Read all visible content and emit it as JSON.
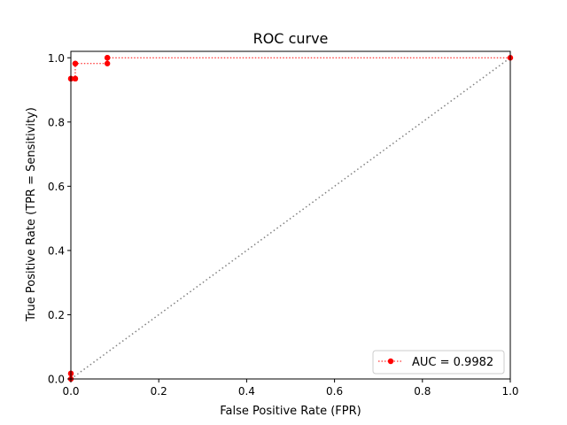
{
  "chart_data": {
    "type": "line",
    "title": "ROC curve",
    "xlabel": "False Positive Rate (FPR)",
    "ylabel": "True Positive Rate (TPR = Sensitivity)",
    "xlim": [
      0,
      1
    ],
    "ylim": [
      0,
      1.02
    ],
    "xticks": [
      0.0,
      0.2,
      0.4,
      0.6,
      0.8,
      1.0
    ],
    "yticks": [
      0.0,
      0.2,
      0.4,
      0.6,
      0.8,
      1.0
    ],
    "xtick_labels": [
      "0.0",
      "0.2",
      "0.4",
      "0.6",
      "0.8",
      "1.0"
    ],
    "ytick_labels": [
      "0.0",
      "0.2",
      "0.4",
      "0.6",
      "0.8",
      "1.0"
    ],
    "grid": false,
    "legend_position": "lower-right",
    "series": [
      {
        "name": "AUC = 0.9982",
        "color": "#ff0000",
        "line_style": "dotted",
        "marker": "circle",
        "x": [
          0.0,
          0.0,
          0.0,
          0.0,
          0.0,
          0.01,
          0.01,
          0.01,
          0.01,
          0.083,
          0.083,
          0.083,
          1.0
        ],
        "y": [
          0.0,
          0.017,
          0.017,
          0.935,
          0.935,
          0.935,
          0.935,
          0.982,
          0.982,
          0.982,
          1.0,
          1.0,
          1.0
        ]
      }
    ],
    "reference_line": {
      "x": [
        0,
        1
      ],
      "y": [
        0,
        1
      ],
      "color": "#808080",
      "line_style": "dotted"
    }
  }
}
